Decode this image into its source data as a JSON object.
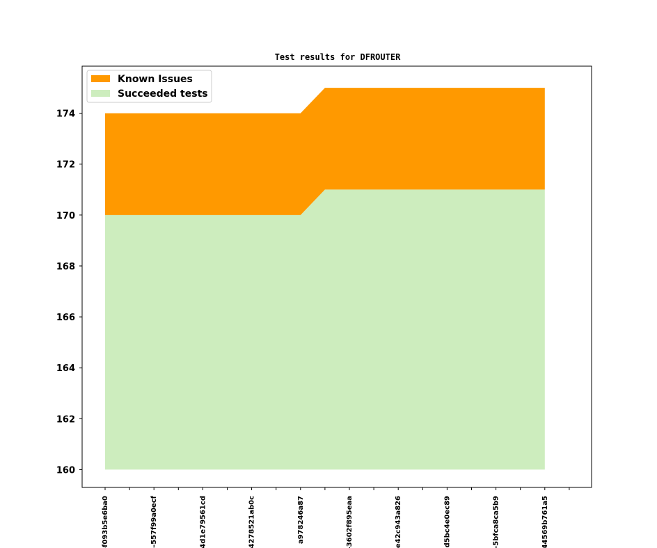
{
  "chart_data": {
    "type": "area",
    "title": "Test results for DFROUTER",
    "xlabel": "",
    "ylabel": "",
    "categories": [
      "-f093b5e6ba0",
      "",
      "o-557f99a0ecf",
      "",
      "4d1e79561cd",
      "",
      "4278521ab0c",
      "",
      "a978246a87",
      "",
      "-3602f895eaa",
      "",
      "e42c943a826",
      "",
      "-d5bc4e0ec89",
      "",
      "-5bfca8ca5b9",
      "",
      "44569b761a5",
      ""
    ],
    "y_baseline": 160,
    "ylim": [
      159.3,
      175.85
    ],
    "yticks": [
      160,
      162,
      164,
      166,
      168,
      170,
      172,
      174
    ],
    "grid": false,
    "legend_position": "top-left",
    "series": [
      {
        "name": "Succeeded tests",
        "color": "#cdedbe",
        "values": [
          170,
          170,
          170,
          170,
          170,
          170,
          170,
          170,
          170,
          171,
          171,
          171,
          171,
          171,
          171,
          171,
          171,
          171,
          171,
          171
        ]
      },
      {
        "name": "Known Issues",
        "color": "#ff9900",
        "values": [
          4,
          4,
          4,
          4,
          4,
          4,
          4,
          4,
          4,
          4,
          4,
          4,
          4,
          4,
          4,
          4,
          4,
          4,
          4,
          4
        ]
      }
    ],
    "legend": [
      "Known Issues",
      "Succeeded tests"
    ]
  }
}
